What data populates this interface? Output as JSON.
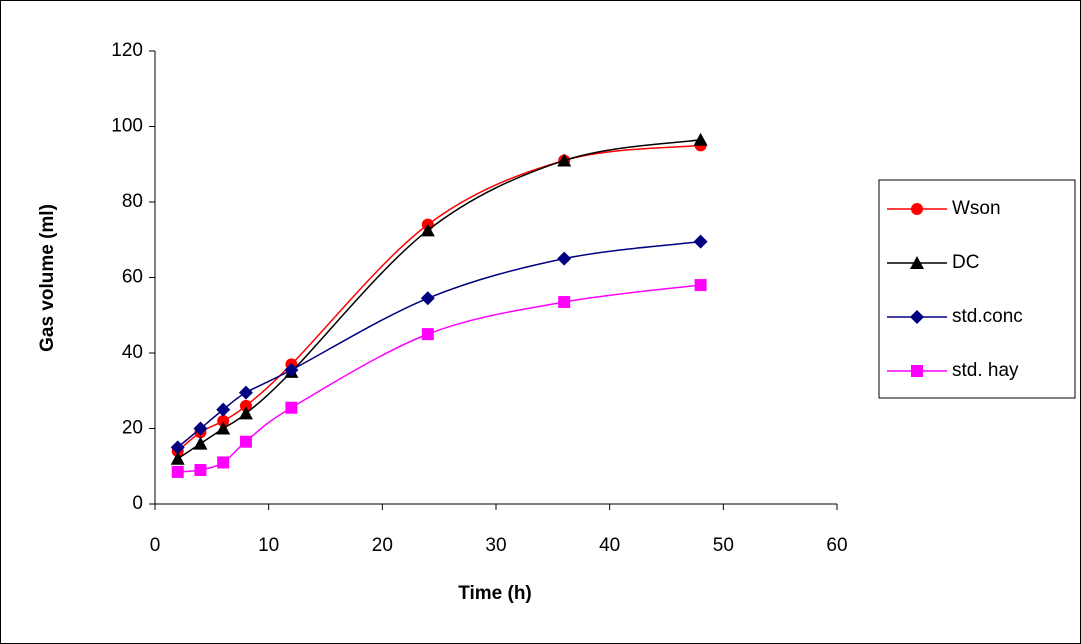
{
  "chart_data": {
    "type": "line",
    "x_label": "Time (h)",
    "y_label": "Gas volume (ml)",
    "x": [
      2,
      4,
      6,
      8,
      12,
      24,
      36,
      48
    ],
    "series": [
      {
        "name": "Wson",
        "color": "#ff0000",
        "marker": "circle",
        "values": [
          14,
          19,
          22,
          26,
          37,
          74,
          91,
          95
        ]
      },
      {
        "name": "DC",
        "color": "#000000",
        "marker": "triangle",
        "values": [
          12,
          16,
          20,
          24,
          35,
          72.5,
          91,
          96.5
        ]
      },
      {
        "name": "std.conc",
        "color": "#000080",
        "marker": "diamond",
        "values": [
          15,
          20,
          25,
          29.5,
          35.5,
          54.5,
          65,
          69.5
        ]
      },
      {
        "name": "std. hay",
        "color": "#ff00ff",
        "marker": "square",
        "values": [
          8.5,
          9,
          11,
          16.5,
          25.5,
          45,
          53.5,
          58
        ]
      }
    ],
    "xlim": [
      0,
      60
    ],
    "xticks": [
      0,
      10,
      20,
      30,
      40,
      50,
      60
    ],
    "ylim": [
      0,
      120
    ],
    "yticks": [
      0,
      20,
      40,
      60,
      80,
      100,
      120
    ],
    "grid": false,
    "legend": "right"
  }
}
